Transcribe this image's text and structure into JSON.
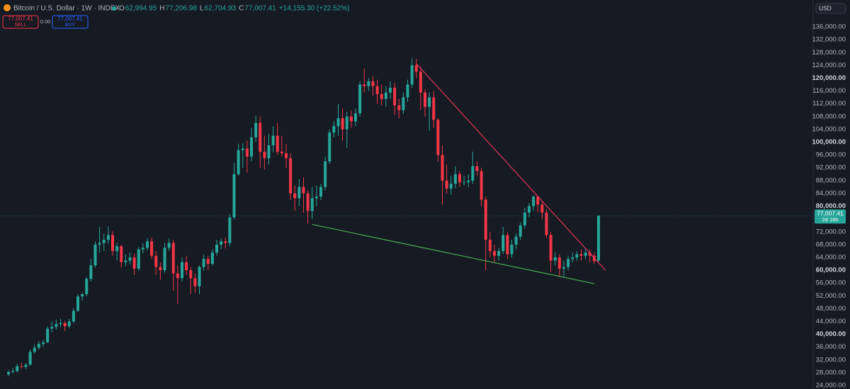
{
  "chart_data": {
    "type": "candlestick",
    "title": "Bitcoin / U.S. Dollar · 1W · INDEX",
    "ohlc_legend": [
      {
        "key": "O",
        "text": "62,994.95"
      },
      {
        "key": "H",
        "text": "77,206.98"
      },
      {
        "key": "L",
        "text": "62,704.93"
      },
      {
        "key": "C",
        "text": "77,007.41"
      }
    ],
    "change_text": "+14,155.30 (+22.52%)",
    "sell": {
      "price": "77,007.41",
      "label": "SELL"
    },
    "spread": "0.00",
    "buy": {
      "price": "77,007.41",
      "label": "BUY"
    },
    "currency": "USD",
    "last_price": {
      "value": 77007.41,
      "label": "77,007.41",
      "countdown": "2d 16h"
    },
    "up_color": "#26a69a",
    "down_color": "#f23645",
    "grid": false,
    "ylim": [
      22900,
      144400
    ],
    "yticks": [
      {
        "value": 24000,
        "label": "24,000.00"
      },
      {
        "value": 28000,
        "label": "28,000.00"
      },
      {
        "value": 32000,
        "label": "32,000.00"
      },
      {
        "value": 36000,
        "label": "36,000.00"
      },
      {
        "value": 40000,
        "label": "40,000.00"
      },
      {
        "value": 44000,
        "label": "44,000.00"
      },
      {
        "value": 48000,
        "label": "48,000.00"
      },
      {
        "value": 52000,
        "label": "52,000.00"
      },
      {
        "value": 56000,
        "label": "56,000.00"
      },
      {
        "value": 60000,
        "label": "60,000.00"
      },
      {
        "value": 64000,
        "label": "64,000.00"
      },
      {
        "value": 68000,
        "label": "68,000.00"
      },
      {
        "value": 72000,
        "label": "72,000.00"
      },
      {
        "value": 80000,
        "label": "80,000.00"
      },
      {
        "value": 84000,
        "label": "84,000.00"
      },
      {
        "value": 88000,
        "label": "88,000.00"
      },
      {
        "value": 92000,
        "label": "92,000.00"
      },
      {
        "value": 96000,
        "label": "96,000.00"
      },
      {
        "value": 100000,
        "label": "100,000.00"
      },
      {
        "value": 104000,
        "label": "104,000.00"
      },
      {
        "value": 108000,
        "label": "108,000.00"
      },
      {
        "value": 112000,
        "label": "112,000.00"
      },
      {
        "value": 116000,
        "label": "116,000.00"
      },
      {
        "value": 120000,
        "label": "120,000.00"
      },
      {
        "value": 124000,
        "label": "124,000.00"
      },
      {
        "value": 128000,
        "label": "128,000.00"
      },
      {
        "value": 132000,
        "label": "132,000.00"
      },
      {
        "value": 136000,
        "label": "136,000.00"
      }
    ],
    "trendlines": [
      {
        "color": "#e0345a",
        "points": [
          [
            94,
            124500
          ],
          [
            137.6,
            60000
          ]
        ]
      },
      {
        "color": "#4caf50",
        "points": [
          [
            70,
            74300
          ],
          [
            135,
            55800
          ]
        ]
      }
    ],
    "candles": [
      [
        27500,
        28800,
        26900,
        28200
      ],
      [
        28200,
        29400,
        27800,
        28500
      ],
      [
        28500,
        30800,
        28100,
        30000
      ],
      [
        30000,
        31200,
        29300,
        29800
      ],
      [
        29800,
        31000,
        29200,
        30500
      ],
      [
        30500,
        35200,
        30200,
        34500
      ],
      [
        34500,
        36800,
        34000,
        35800
      ],
      [
        35800,
        37900,
        35200,
        37000
      ],
      [
        37000,
        38300,
        36100,
        37500
      ],
      [
        37500,
        42500,
        37200,
        41800
      ],
      [
        41800,
        44000,
        40600,
        42300
      ],
      [
        42300,
        44600,
        41500,
        43200
      ],
      [
        43200,
        44800,
        42200,
        43500
      ],
      [
        43500,
        44200,
        41000,
        42500
      ],
      [
        42500,
        44800,
        42000,
        44000
      ],
      [
        44000,
        48200,
        43500,
        47300
      ],
      [
        47300,
        52500,
        47000,
        51800
      ],
      [
        51800,
        53000,
        50500,
        52500
      ],
      [
        52500,
        57800,
        51800,
        57300
      ],
      [
        57300,
        63500,
        56500,
        61500
      ],
      [
        61500,
        69000,
        60800,
        68000
      ],
      [
        68000,
        73500,
        65500,
        68500
      ],
      [
        68500,
        71500,
        66000,
        69500
      ],
      [
        69500,
        73700,
        68200,
        71000
      ],
      [
        71000,
        72200,
        64500,
        66000
      ],
      [
        66000,
        68600,
        63000,
        67500
      ],
      [
        67500,
        68000,
        60800,
        62500
      ],
      [
        62500,
        65000,
        61200,
        63000
      ],
      [
        63000,
        65500,
        61800,
        64000
      ],
      [
        64000,
        65200,
        58500,
        60500
      ],
      [
        60500,
        67200,
        59800,
        66500
      ],
      [
        66500,
        68400,
        65200,
        67000
      ],
      [
        67000,
        70000,
        66200,
        69000
      ],
      [
        69000,
        70200,
        63500,
        64500
      ],
      [
        64500,
        66000,
        58500,
        61000
      ],
      [
        61000,
        62500,
        57000,
        60000
      ],
      [
        60000,
        68500,
        59200,
        67000
      ],
      [
        67000,
        70000,
        66000,
        68500
      ],
      [
        68500,
        69500,
        53500,
        59000
      ],
      [
        59000,
        61500,
        49500,
        57500
      ],
      [
        57500,
        64000,
        56500,
        62500
      ],
      [
        62500,
        64500,
        58500,
        60000
      ],
      [
        60000,
        61000,
        52600,
        57500
      ],
      [
        57500,
        59000,
        53000,
        55000
      ],
      [
        55000,
        61500,
        52500,
        61000
      ],
      [
        61000,
        65000,
        59800,
        63500
      ],
      [
        63500,
        64500,
        60000,
        62000
      ],
      [
        62000,
        66500,
        61500,
        65500
      ],
      [
        65500,
        69500,
        64500,
        68000
      ],
      [
        68000,
        70000,
        66500,
        69000
      ],
      [
        69000,
        70300,
        66800,
        68500
      ],
      [
        68500,
        77500,
        67500,
        76500
      ],
      [
        76500,
        93500,
        75800,
        90000
      ],
      [
        90000,
        99500,
        89500,
        97500
      ],
      [
        97500,
        99600,
        92000,
        98000
      ],
      [
        98000,
        100500,
        90500,
        95500
      ],
      [
        95500,
        104500,
        94000,
        101500
      ],
      [
        101500,
        108300,
        100000,
        106000
      ],
      [
        106000,
        108000,
        92000,
        97000
      ],
      [
        97000,
        102000,
        91500,
        95000
      ],
      [
        95000,
        102500,
        93000,
        99000
      ],
      [
        99000,
        105000,
        96800,
        102000
      ],
      [
        102000,
        106000,
        96000,
        97000
      ],
      [
        97000,
        102000,
        95500,
        96500
      ],
      [
        96500,
        99500,
        92000,
        95000
      ],
      [
        95000,
        96500,
        82000,
        84000
      ],
      [
        84000,
        86500,
        78500,
        82500
      ],
      [
        82500,
        88500,
        80000,
        86000
      ],
      [
        86000,
        89000,
        78000,
        84000
      ],
      [
        84000,
        85000,
        74500,
        78500
      ],
      [
        78500,
        86000,
        76000,
        82500
      ],
      [
        82500,
        86500,
        80000,
        83000
      ],
      [
        83000,
        87000,
        82000,
        86000
      ],
      [
        86000,
        95500,
        85000,
        94000
      ],
      [
        94000,
        104000,
        93200,
        103000
      ],
      [
        103000,
        106500,
        101500,
        105000
      ],
      [
        105000,
        111900,
        102000,
        107500
      ],
      [
        107500,
        110500,
        100500,
        104000
      ],
      [
        104000,
        109500,
        98200,
        108000
      ],
      [
        108000,
        110000,
        104500,
        106500
      ],
      [
        106500,
        110500,
        105000,
        109000
      ],
      [
        109000,
        119000,
        108000,
        118000
      ],
      [
        118000,
        123000,
        115500,
        117500
      ],
      [
        117500,
        120000,
        116000,
        119000
      ],
      [
        119000,
        120500,
        114500,
        117500
      ],
      [
        117500,
        119500,
        112000,
        115000
      ],
      [
        115000,
        118000,
        111500,
        113500
      ],
      [
        113500,
        117500,
        111000,
        115500
      ],
      [
        115500,
        119000,
        113500,
        117000
      ],
      [
        117000,
        118500,
        108500,
        111500
      ],
      [
        111500,
        113500,
        107500,
        110000
      ],
      [
        110000,
        115500,
        108800,
        114000
      ],
      [
        114000,
        119500,
        112500,
        118000
      ],
      [
        118000,
        126200,
        117000,
        124000
      ],
      [
        124000,
        126000,
        120000,
        122000
      ],
      [
        122000,
        123500,
        110000,
        115500
      ],
      [
        115500,
        116500,
        108000,
        111000
      ],
      [
        111000,
        115500,
        103500,
        114000
      ],
      [
        114000,
        116000,
        104500,
        107000
      ],
      [
        107000,
        107500,
        94000,
        96000
      ],
      [
        96000,
        99000,
        80500,
        88000
      ],
      [
        88000,
        93000,
        84000,
        85500
      ],
      [
        85500,
        89500,
        83500,
        87000
      ],
      [
        87000,
        92500,
        85500,
        90000
      ],
      [
        90000,
        91000,
        86000,
        87500
      ],
      [
        87500,
        89500,
        86500,
        87500
      ],
      [
        87500,
        90000,
        86000,
        88000
      ],
      [
        88000,
        97000,
        87000,
        92500
      ],
      [
        92500,
        94000,
        89500,
        91000
      ],
      [
        91000,
        92000,
        80000,
        82000
      ],
      [
        82000,
        83000,
        60000,
        69500
      ],
      [
        69500,
        72000,
        64000,
        66000
      ],
      [
        66000,
        68000,
        62500,
        64500
      ],
      [
        64500,
        67000,
        63000,
        66000
      ],
      [
        66000,
        73500,
        65000,
        71000
      ],
      [
        71000,
        72000,
        63500,
        65000
      ],
      [
        65000,
        69500,
        64000,
        68000
      ],
      [
        68000,
        71500,
        66500,
        70500
      ],
      [
        70500,
        75000,
        69500,
        74000
      ],
      [
        74000,
        79500,
        73000,
        78000
      ],
      [
        78000,
        81000,
        76500,
        80000
      ],
      [
        80000,
        83500,
        78500,
        83000
      ],
      [
        83000,
        83200,
        78000,
        80500
      ],
      [
        80500,
        81500,
        76000,
        78000
      ],
      [
        78000,
        79000,
        70000,
        71000
      ],
      [
        71000,
        72000,
        59500,
        63000
      ],
      [
        63000,
        65500,
        61500,
        64000
      ],
      [
        64000,
        65000,
        58000,
        60500
      ],
      [
        60500,
        63000,
        58000,
        61000
      ],
      [
        61000,
        64500,
        60000,
        63500
      ],
      [
        63500,
        65500,
        62500,
        64000
      ],
      [
        64000,
        66000,
        63000,
        65000
      ],
      [
        65000,
        66500,
        63000,
        64500
      ],
      [
        64500,
        66500,
        63500,
        65500
      ],
      [
        65500,
        66500,
        62500,
        64500
      ],
      [
        64500,
        65500,
        62000,
        62852.11
      ],
      [
        62994.95,
        77206.98,
        62704.93,
        77007.41
      ]
    ]
  }
}
